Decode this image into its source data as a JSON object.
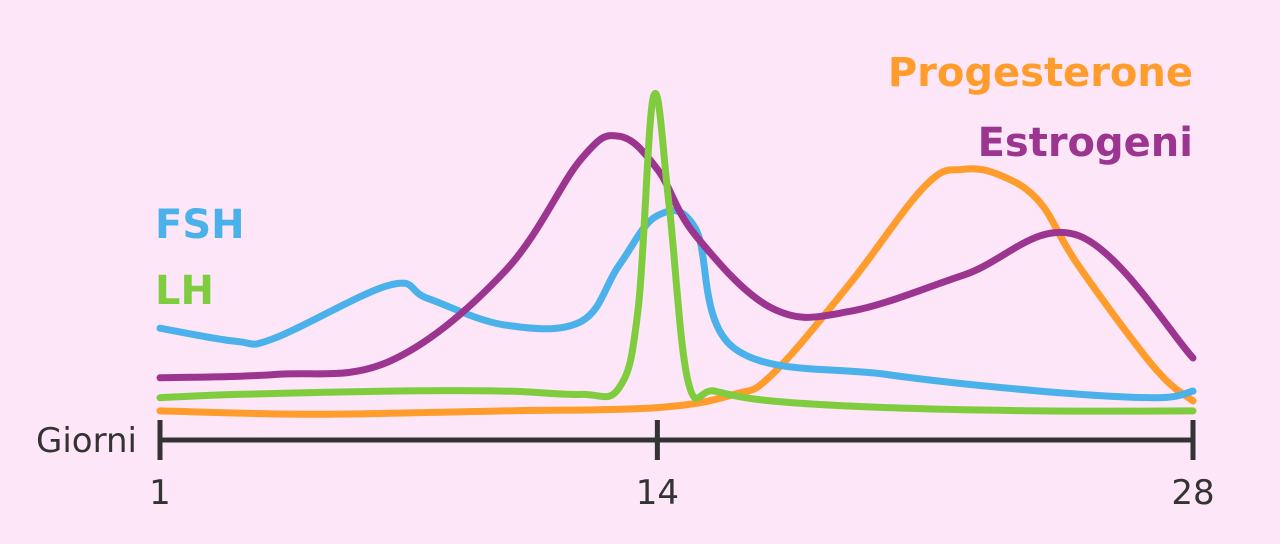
{
  "chart_data": {
    "type": "line",
    "title": "",
    "xlabel": "Giorni",
    "ylabel": "",
    "xlim": [
      1,
      28
    ],
    "ylim": [
      0,
      100
    ],
    "x_ticks": [
      1,
      14,
      28
    ],
    "x_tick_labels": [
      "1",
      "14",
      "28"
    ],
    "grid": false,
    "legend_placement": "inline",
    "series": [
      {
        "name": "FSH",
        "color": "#4ab1ea",
        "label_position": "left",
        "x": [
          1,
          3,
          4,
          7,
          8,
          10,
          12,
          13,
          14,
          15,
          16,
          20,
          24,
          27,
          28
        ],
        "y": [
          22,
          18,
          19,
          35,
          31,
          23,
          24,
          41,
          56,
          52,
          16,
          8,
          3,
          1,
          3
        ]
      },
      {
        "name": "LH",
        "color": "#7fcc3f",
        "label_position": "left",
        "x": [
          1,
          3,
          7,
          10,
          12,
          13,
          13.5,
          13.9,
          14.3,
          14.8,
          15.5,
          17,
          20,
          24,
          28
        ],
        "y": [
          1,
          2,
          3,
          3,
          2,
          4,
          28,
          92,
          60,
          6,
          3,
          0,
          -2,
          -3,
          -3
        ]
      },
      {
        "name": "Estrogeni",
        "color": "#9c3590",
        "label_position": "right",
        "x": [
          1,
          4,
          7,
          10,
          12,
          13,
          14,
          15,
          17,
          19,
          22,
          25,
          28
        ],
        "y": [
          7,
          8,
          12,
          39,
          73,
          80,
          70,
          50,
          28,
          27,
          38,
          50,
          13
        ]
      },
      {
        "name": "Progesterone",
        "color": "#ff9c2c",
        "label_position": "right",
        "x": [
          1,
          5,
          10,
          14,
          16,
          17,
          19,
          21,
          22,
          23,
          24,
          25,
          27,
          28
        ],
        "y": [
          -3,
          -4,
          -3,
          -2,
          2,
          8,
          35,
          65,
          70,
          68,
          60,
          41,
          10,
          0
        ]
      }
    ]
  }
}
